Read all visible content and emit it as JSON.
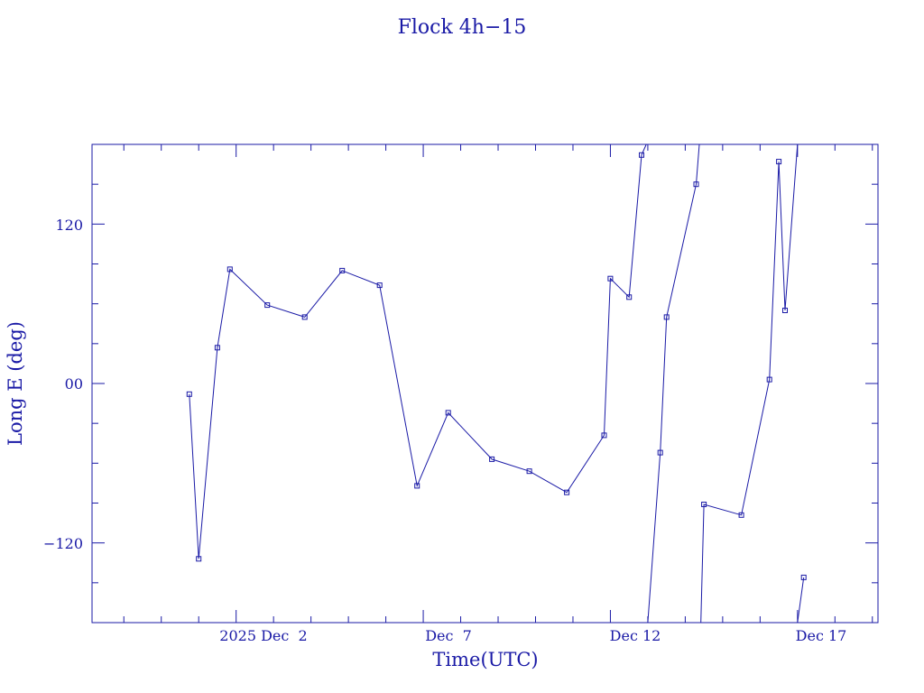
{
  "chart_data": {
    "type": "line",
    "title": "Flock 4h−15",
    "xlabel": "Time(UTC)",
    "ylabel": "Long E (deg)",
    "xlim": [
      "2025-11-28T03:36",
      "2025-12-19T03:36"
    ],
    "ylim": [
      -180,
      180
    ],
    "line_color": "#1a1aa6",
    "marker": "square",
    "y_tick_labels": [
      "120",
      "00",
      "−120"
    ],
    "x_tick_labels": [
      "2025 Dec  2",
      "Dec  7",
      "Dec 12",
      "Dec 17"
    ],
    "series": [
      {
        "points": [
          [
            "2025-11-30T18:00",
            -8
          ],
          [
            "2025-12-01T00:00",
            -132
          ],
          [
            "2025-12-01T12:00",
            27
          ],
          [
            "2025-12-01T20:00",
            86
          ],
          [
            "2025-12-02T20:00",
            59
          ],
          [
            "2025-12-03T20:00",
            50
          ],
          [
            "2025-12-04T20:00",
            85
          ],
          [
            "2025-12-05T20:00",
            74
          ],
          [
            "2025-12-06T20:00",
            -77
          ],
          [
            "2025-12-07T16:00",
            -22
          ],
          [
            "2025-12-08T20:00",
            -57
          ],
          [
            "2025-12-09T20:00",
            -66
          ],
          [
            "2025-12-10T20:00",
            -82
          ],
          [
            "2025-12-11T20:00",
            -39
          ],
          [
            "2025-12-12T00:00",
            79
          ],
          [
            "2025-12-12T12:00",
            65
          ],
          [
            "2025-12-12T20:00",
            172
          ],
          [
            "2025-12-12T23:00",
            180
          ]
        ]
      },
      {
        "points": [
          [
            "2025-12-13T00:00",
            -180
          ],
          [
            "2025-12-13T08:00",
            -52
          ],
          [
            "2025-12-13T12:00",
            50
          ],
          [
            "2025-12-14T07:00",
            150
          ],
          [
            "2025-12-14T09:00",
            180
          ]
        ]
      },
      {
        "points": [
          [
            "2025-12-14T10:00",
            -180
          ],
          [
            "2025-12-14T12:00",
            -91
          ],
          [
            "2025-12-15T12:00",
            -99
          ],
          [
            "2025-12-16T06:00",
            3
          ],
          [
            "2025-12-16T12:00",
            167
          ],
          [
            "2025-12-16T16:00",
            55
          ],
          [
            "2025-12-17T00:00",
            180
          ]
        ]
      },
      {
        "points": [
          [
            "2025-12-17T00:00",
            -180
          ],
          [
            "2025-12-17T04:00",
            -146
          ]
        ]
      }
    ]
  }
}
